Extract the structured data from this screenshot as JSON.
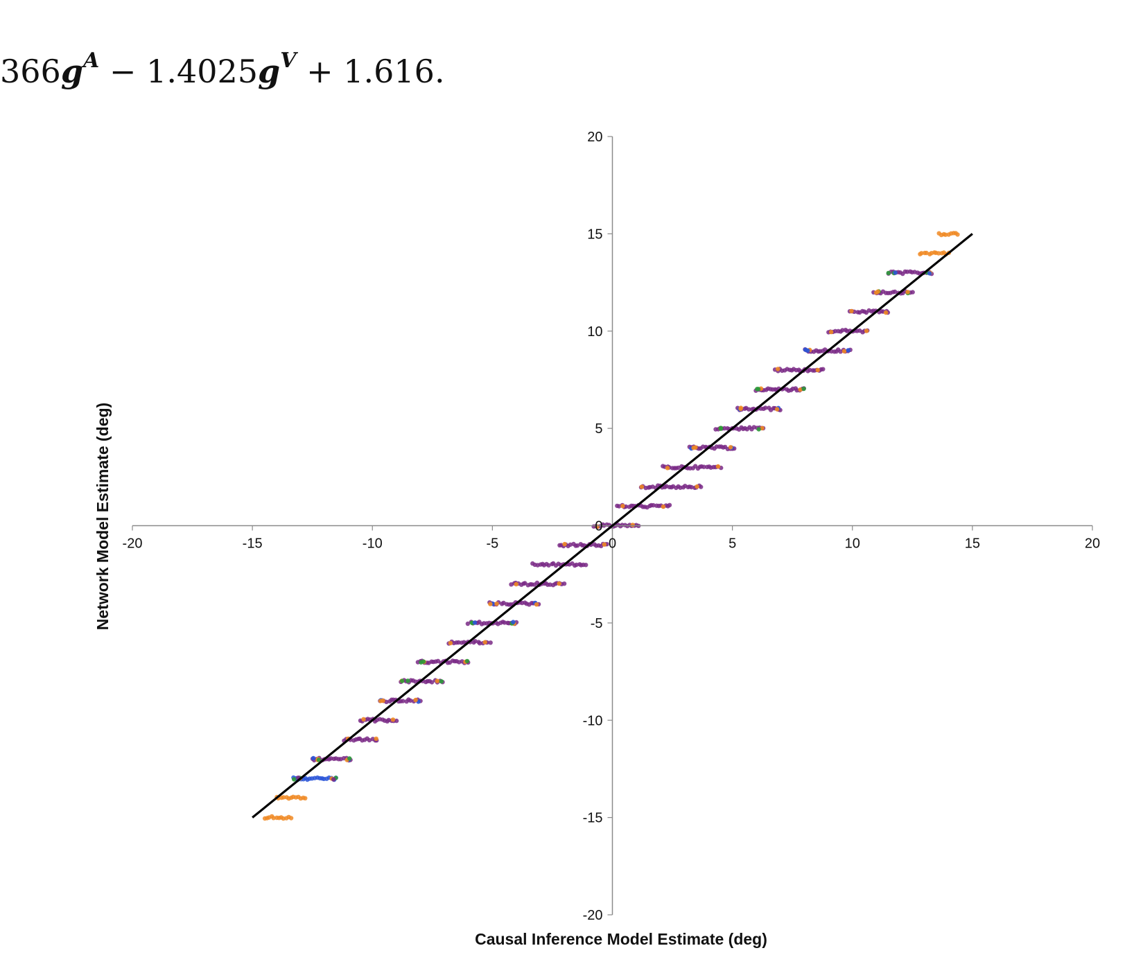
{
  "equation": {
    "prefix": "366",
    "g_symbol": "g",
    "sup_a": "A",
    "middle": " − 1.4025",
    "sup_v": "V",
    "suffix": " + 1.616."
  },
  "chart_data": {
    "type": "scatter",
    "title": "",
    "xlabel": "Causal Inference Model Estimate (deg)",
    "ylabel": "Network Model Estimate (deg)",
    "xlim": [
      -20,
      20
    ],
    "ylim": [
      -20,
      20
    ],
    "xticks": [
      -20,
      -15,
      -10,
      -5,
      0,
      5,
      10,
      15,
      20
    ],
    "yticks": [
      -20,
      -15,
      -10,
      -5,
      0,
      5,
      10,
      15,
      20
    ],
    "grid": false,
    "legend": "none",
    "axes_cross_at_origin": true,
    "fit_line": {
      "x": [
        -15,
        15
      ],
      "y": [
        -15,
        15
      ],
      "color": "#000000"
    },
    "colors": {
      "purple": "#7a2a86",
      "orange": "#f08a24",
      "green": "#2e9a3a",
      "blue": "#2a55d8"
    },
    "bands": [
      {
        "y": 15,
        "x0": 13.6,
        "x1": 14.4,
        "colors": [
          "orange"
        ]
      },
      {
        "y": 14,
        "x0": 12.8,
        "x1": 14.0,
        "colors": [
          "orange"
        ]
      },
      {
        "y": 13,
        "x0": 11.5,
        "x1": 13.3,
        "colors": [
          "purple",
          "orange",
          "green",
          "blue"
        ]
      },
      {
        "y": 12,
        "x0": 10.9,
        "x1": 12.5,
        "colors": [
          "purple",
          "green",
          "orange"
        ]
      },
      {
        "y": 11,
        "x0": 9.9,
        "x1": 11.5,
        "colors": [
          "purple",
          "orange"
        ]
      },
      {
        "y": 10,
        "x0": 9.0,
        "x1": 10.6,
        "colors": [
          "purple",
          "orange"
        ]
      },
      {
        "y": 9,
        "x0": 8.0,
        "x1": 9.9,
        "colors": [
          "purple",
          "orange",
          "blue"
        ]
      },
      {
        "y": 8,
        "x0": 6.8,
        "x1": 8.8,
        "colors": [
          "purple",
          "orange"
        ]
      },
      {
        "y": 7,
        "x0": 6.0,
        "x1": 8.0,
        "colors": [
          "purple",
          "orange",
          "green"
        ]
      },
      {
        "y": 6,
        "x0": 5.2,
        "x1": 7.0,
        "colors": [
          "purple",
          "blue",
          "orange"
        ]
      },
      {
        "y": 5,
        "x0": 4.3,
        "x1": 6.3,
        "colors": [
          "purple",
          "orange",
          "green"
        ]
      },
      {
        "y": 4,
        "x0": 3.2,
        "x1": 5.1,
        "colors": [
          "purple",
          "blue",
          "orange"
        ]
      },
      {
        "y": 3,
        "x0": 2.1,
        "x1": 4.5,
        "colors": [
          "purple",
          "orange"
        ]
      },
      {
        "y": 2,
        "x0": 1.2,
        "x1": 3.7,
        "colors": [
          "purple",
          "orange"
        ]
      },
      {
        "y": 1,
        "x0": 0.2,
        "x1": 2.4,
        "colors": [
          "purple",
          "orange"
        ]
      },
      {
        "y": 0,
        "x0": -0.8,
        "x1": 1.1,
        "colors": [
          "purple",
          "orange"
        ]
      },
      {
        "y": -1,
        "x0": -2.2,
        "x1": -0.2,
        "colors": [
          "purple",
          "orange"
        ]
      },
      {
        "y": -2,
        "x0": -3.3,
        "x1": -1.1,
        "colors": [
          "purple"
        ]
      },
      {
        "y": -3,
        "x0": -4.2,
        "x1": -2.0,
        "colors": [
          "purple",
          "orange"
        ]
      },
      {
        "y": -4,
        "x0": -5.1,
        "x1": -3.1,
        "colors": [
          "purple",
          "blue",
          "orange"
        ]
      },
      {
        "y": -5,
        "x0": -6.0,
        "x1": -4.0,
        "colors": [
          "purple",
          "orange",
          "green",
          "blue"
        ]
      },
      {
        "y": -6,
        "x0": -6.8,
        "x1": -5.1,
        "colors": [
          "purple",
          "orange"
        ]
      },
      {
        "y": -7,
        "x0": -8.1,
        "x1": -6.0,
        "colors": [
          "purple",
          "orange",
          "green"
        ]
      },
      {
        "y": -8,
        "x0": -8.8,
        "x1": -7.1,
        "colors": [
          "purple",
          "orange",
          "green"
        ]
      },
      {
        "y": -9,
        "x0": -9.7,
        "x1": -8.0,
        "colors": [
          "purple",
          "blue",
          "orange"
        ]
      },
      {
        "y": -10,
        "x0": -10.5,
        "x1": -9.0,
        "colors": [
          "purple",
          "orange"
        ]
      },
      {
        "y": -11,
        "x0": -11.2,
        "x1": -9.8,
        "colors": [
          "purple",
          "orange"
        ]
      },
      {
        "y": -12,
        "x0": -12.5,
        "x1": -10.9,
        "colors": [
          "purple",
          "blue",
          "orange",
          "green"
        ]
      },
      {
        "y": -13,
        "x0": -13.3,
        "x1": -11.5,
        "colors": [
          "blue",
          "orange",
          "green",
          "purple"
        ]
      },
      {
        "y": -14,
        "x0": -14.0,
        "x1": -12.8,
        "colors": [
          "orange"
        ]
      },
      {
        "y": -15,
        "x0": -14.5,
        "x1": -13.4,
        "colors": [
          "orange"
        ]
      }
    ]
  }
}
